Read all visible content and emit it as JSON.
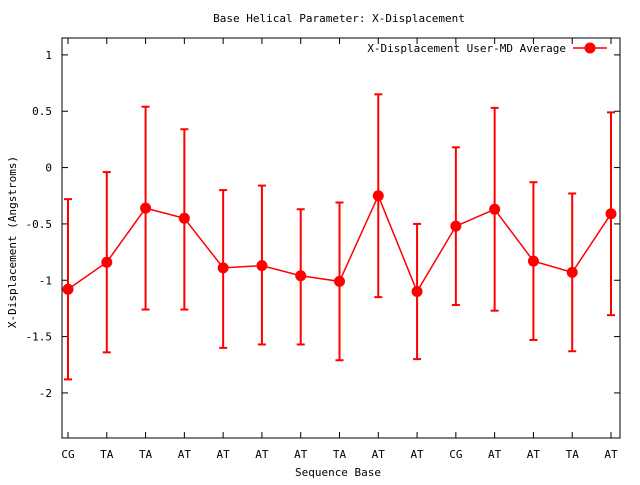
{
  "chart_data": {
    "type": "line",
    "title": "Base  Helical Parameter: X-Displacement",
    "xlabel": "Sequence Base",
    "ylabel": "X-Displacement (Angstroms)",
    "categories": [
      "CG",
      "TA",
      "TA",
      "AT",
      "AT",
      "AT",
      "AT",
      "TA",
      "AT",
      "AT",
      "CG",
      "AT",
      "AT",
      "TA",
      "AT"
    ],
    "ylim": [
      -2.4,
      1.15
    ],
    "yticks": [
      1,
      0.5,
      0,
      -0.5,
      -1,
      -1.5,
      -2
    ],
    "ytick_labels": [
      "1",
      "0.5",
      "0",
      "-0.5",
      "-1",
      "-1.5",
      "-2"
    ],
    "grid": false,
    "legend_position": "top-right",
    "series": [
      {
        "name": "X-Displacement User-MD Average",
        "color": "#ff0000",
        "values": [
          -1.08,
          -0.84,
          -0.36,
          -0.45,
          -0.89,
          -0.87,
          -0.96,
          -1.01,
          -0.25,
          -1.1,
          -0.52,
          -0.37,
          -0.83,
          -0.93,
          -0.41
        ],
        "error_low": [
          -1.88,
          -1.64,
          -1.26,
          -1.26,
          -1.6,
          -1.57,
          -1.57,
          -1.71,
          -1.15,
          -1.7,
          -1.22,
          -1.27,
          -1.53,
          -1.63,
          -1.31
        ],
        "error_high": [
          -0.28,
          -0.04,
          0.54,
          0.34,
          -0.2,
          -0.16,
          -0.37,
          -0.31,
          0.65,
          -0.5,
          0.18,
          0.53,
          -0.13,
          -0.23,
          0.49
        ]
      }
    ]
  }
}
